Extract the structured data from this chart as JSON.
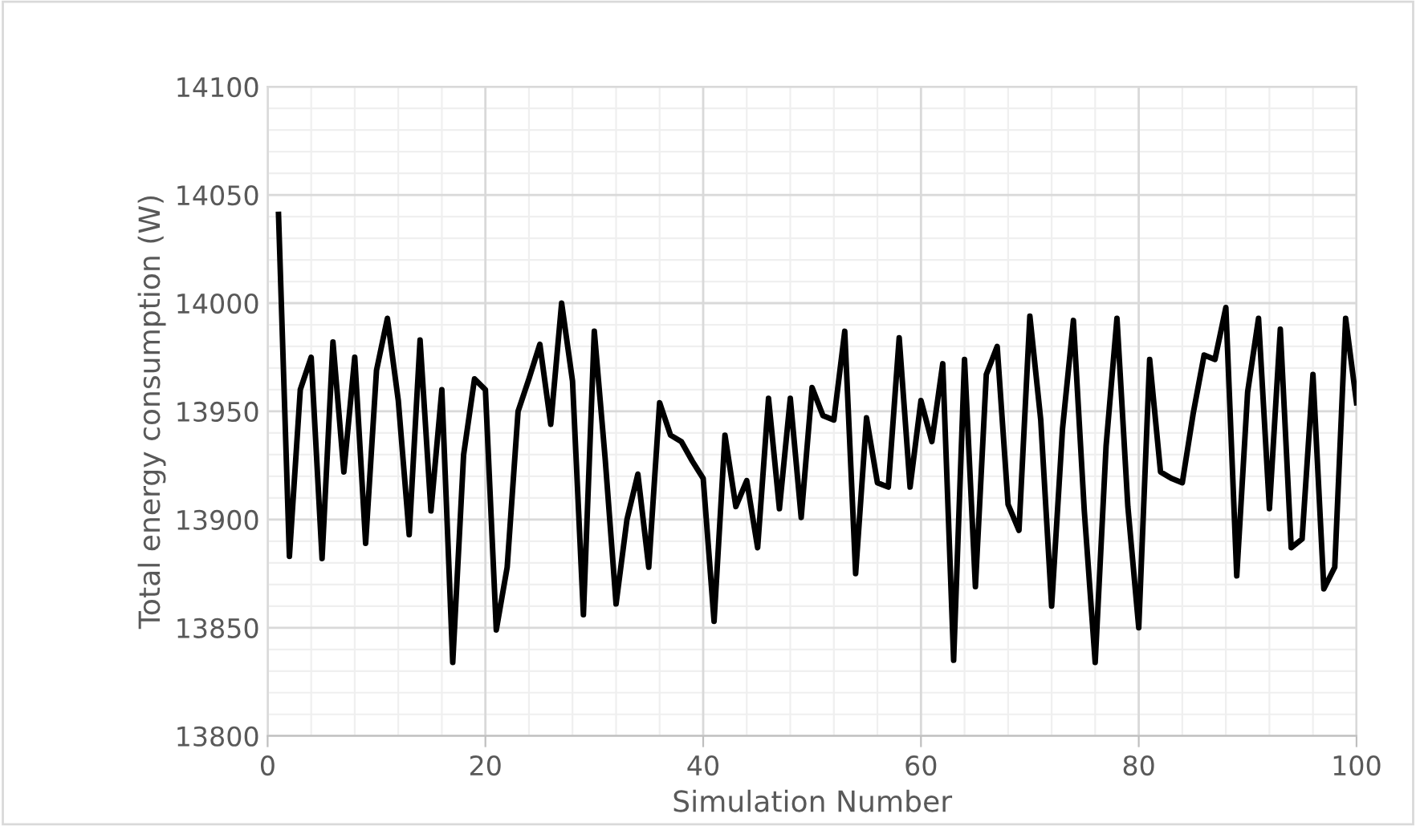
{
  "chart_data": {
    "type": "line",
    "xlabel": "Simulation Number",
    "ylabel": "Total energy consumption (W)",
    "x": [
      1,
      2,
      3,
      4,
      5,
      6,
      7,
      8,
      9,
      10,
      11,
      12,
      13,
      14,
      15,
      16,
      17,
      18,
      19,
      20,
      21,
      22,
      23,
      24,
      25,
      26,
      27,
      28,
      29,
      30,
      31,
      32,
      33,
      34,
      35,
      36,
      37,
      38,
      39,
      40,
      41,
      42,
      43,
      44,
      45,
      46,
      47,
      48,
      49,
      50,
      51,
      52,
      53,
      54,
      55,
      56,
      57,
      58,
      59,
      60,
      61,
      62,
      63,
      64,
      65,
      66,
      67,
      68,
      69,
      70,
      71,
      72,
      73,
      74,
      75,
      76,
      77,
      78,
      79,
      80,
      81,
      82,
      83,
      84,
      85,
      86,
      87,
      88,
      89,
      90,
      91,
      92,
      93,
      94,
      95,
      96,
      97,
      98,
      99,
      100
    ],
    "series": [
      {
        "color": "#000000",
        "values": [
          14041,
          13883,
          13960,
          13975,
          13882,
          13982,
          13922,
          13975,
          13889,
          13969,
          13993,
          13955,
          13893,
          13983,
          13904,
          13960,
          13834,
          13930,
          13965,
          13960,
          13849,
          13878,
          13950,
          13965,
          13981,
          13944,
          14000,
          13964,
          13856,
          13987,
          13928,
          13861,
          13900,
          13921,
          13878,
          13954,
          13939,
          13936,
          13927,
          13919,
          13853,
          13939,
          13906,
          13918,
          13887,
          13956,
          13905,
          13956,
          13901,
          13961,
          13948,
          13946,
          13987,
          13875,
          13947,
          13917,
          13915,
          13984,
          13915,
          13955,
          13936,
          13972,
          13835,
          13974,
          13869,
          13967,
          13980,
          13907,
          13895,
          13994,
          13946,
          13860,
          13942,
          13992,
          13904,
          13834,
          13934,
          13993,
          13906,
          13850,
          13974,
          13922,
          13919,
          13917,
          13949,
          13976,
          13974,
          13998,
          13874,
          13959,
          13993,
          13905,
          13988,
          13887,
          13891,
          13967,
          13868,
          13878,
          13993,
          13954
        ]
      }
    ],
    "xlim": [
      0,
      100
    ],
    "xticks": [
      0,
      20,
      40,
      60,
      80,
      100
    ],
    "ylim": [
      13800,
      14100
    ],
    "yticks": [
      13800,
      13850,
      13900,
      13950,
      14000,
      14050,
      14100
    ],
    "grid": true,
    "marker": "none",
    "line_style": "solid"
  }
}
